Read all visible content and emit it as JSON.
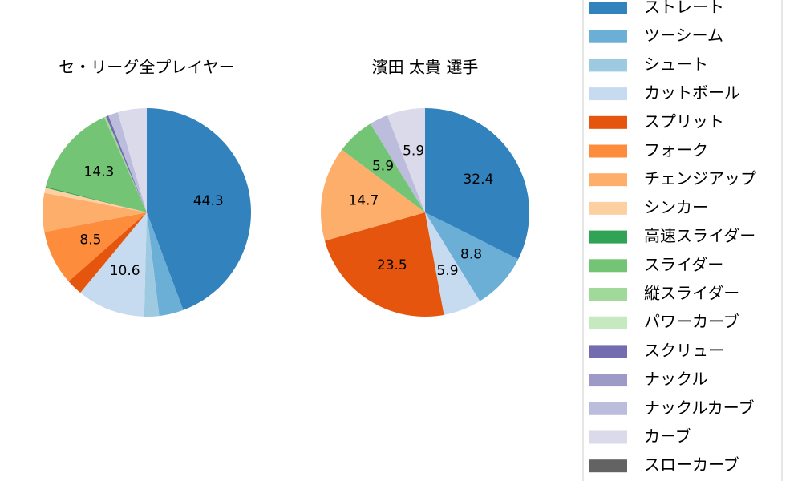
{
  "legend": {
    "categories": [
      "ストレート",
      "ツーシーム",
      "シュート",
      "カットボール",
      "スプリット",
      "フォーク",
      "チェンジアップ",
      "シンカー",
      "高速スライダー",
      "スライダー",
      "縦スライダー",
      "パワーカーブ",
      "スクリュー",
      "ナックル",
      "ナックルカーブ",
      "カーブ",
      "スローカーブ"
    ],
    "colors": [
      "#3182bd",
      "#6baed6",
      "#9ecae1",
      "#c6dbef",
      "#e6550d",
      "#fd8d3c",
      "#fdae6b",
      "#fdd0a2",
      "#31a354",
      "#74c476",
      "#a1d99b",
      "#c7e9c0",
      "#756bb1",
      "#9e9ac8",
      "#bcbddc",
      "#dadaeb",
      "#636363"
    ]
  },
  "chart_data": [
    {
      "type": "pie",
      "title": "セ・リーグ全プレイヤー",
      "values": [
        44.3,
        3.8,
        2.3,
        10.6,
        2.5,
        8.5,
        6.0,
        0.8,
        0.2,
        14.3,
        0.3,
        0,
        0.4,
        0,
        1.5,
        4.5,
        0
      ],
      "value_labels": [
        "44.3",
        null,
        null,
        "10.6",
        null,
        "8.5",
        null,
        null,
        null,
        "14.3",
        null,
        null,
        null,
        null,
        null,
        null,
        null
      ]
    },
    {
      "type": "pie",
      "title": "濱田 太貴  選手",
      "values": [
        32.4,
        8.8,
        0,
        5.9,
        23.5,
        0,
        14.7,
        0,
        0,
        5.9,
        0,
        0,
        0,
        0,
        2.9,
        5.9,
        0
      ],
      "value_labels": [
        "32.4",
        "8.8",
        null,
        "5.9",
        "23.5",
        null,
        "14.7",
        null,
        null,
        "5.9",
        null,
        null,
        null,
        null,
        null,
        "5.9",
        null
      ]
    }
  ]
}
